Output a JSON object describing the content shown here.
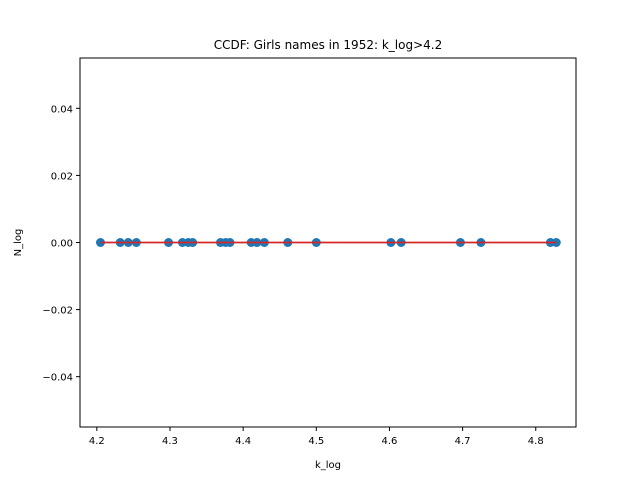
{
  "chart_data": {
    "type": "scatter",
    "title": "CCDF: Girls names in 1952: k_log>4.2",
    "xlabel": "k_log",
    "ylabel": "N_log",
    "xlim": [
      4.177,
      4.855
    ],
    "ylim": [
      -0.055,
      0.055
    ],
    "x_ticks": [
      4.2,
      4.3,
      4.4,
      4.5,
      4.6,
      4.7,
      4.8
    ],
    "x_tick_labels": [
      "4.2",
      "4.3",
      "4.4",
      "4.5",
      "4.6",
      "4.7",
      "4.8"
    ],
    "y_ticks": [
      -0.04,
      -0.02,
      0.0,
      0.02,
      0.04
    ],
    "y_tick_labels": [
      "−0.04",
      "−0.02",
      "0.00",
      "0.02",
      "0.04"
    ],
    "grid": false,
    "series": [
      {
        "kind": "scatter",
        "color": "#1f77b4",
        "points": [
          {
            "x": 4.205,
            "y": 0.0
          },
          {
            "x": 4.232,
            "y": 0.0
          },
          {
            "x": 4.243,
            "y": 0.0
          },
          {
            "x": 4.254,
            "y": 0.0
          },
          {
            "x": 4.298,
            "y": 0.0
          },
          {
            "x": 4.317,
            "y": 0.0
          },
          {
            "x": 4.325,
            "y": 0.0
          },
          {
            "x": 4.331,
            "y": 0.0
          },
          {
            "x": 4.369,
            "y": 0.0
          },
          {
            "x": 4.376,
            "y": 0.0
          },
          {
            "x": 4.382,
            "y": 0.0
          },
          {
            "x": 4.411,
            "y": 0.0
          },
          {
            "x": 4.419,
            "y": 0.0
          },
          {
            "x": 4.429,
            "y": 0.0
          },
          {
            "x": 4.461,
            "y": 0.0
          },
          {
            "x": 4.5,
            "y": 0.0
          },
          {
            "x": 4.602,
            "y": 0.0
          },
          {
            "x": 4.616,
            "y": 0.0
          },
          {
            "x": 4.697,
            "y": 0.0
          },
          {
            "x": 4.725,
            "y": 0.0
          },
          {
            "x": 4.82,
            "y": 0.0
          },
          {
            "x": 4.828,
            "y": 0.0
          }
        ]
      },
      {
        "kind": "line",
        "color": "#d62728",
        "points": [
          {
            "x": 4.205,
            "y": 0.0
          },
          {
            "x": 4.828,
            "y": 0.0
          }
        ]
      }
    ]
  }
}
